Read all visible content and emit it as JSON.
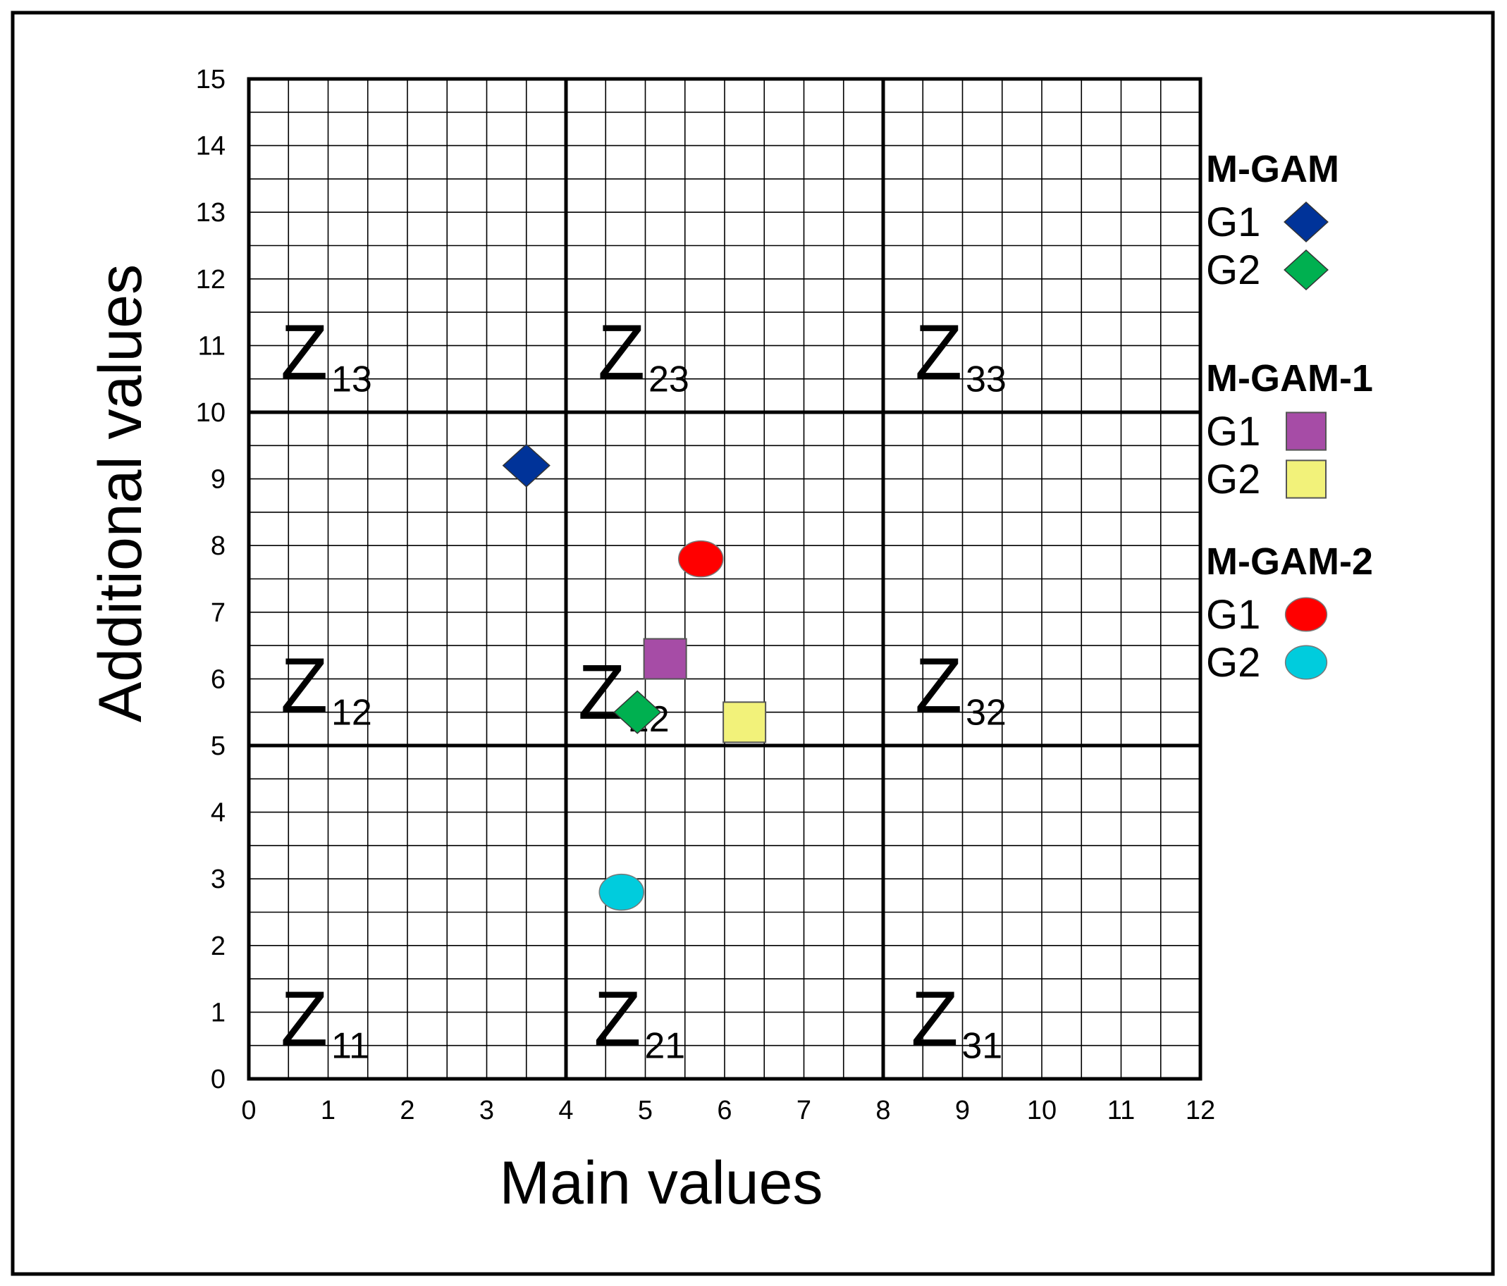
{
  "chart_data": {
    "type": "scatter",
    "title": "",
    "xlabel": "Main values",
    "ylabel": "Additional values",
    "xlim": [
      0,
      12
    ],
    "ylim": [
      0,
      15
    ],
    "x_ticks": [
      0,
      1,
      2,
      3,
      4,
      5,
      6,
      7,
      8,
      9,
      10,
      11,
      12
    ],
    "y_ticks": [
      0,
      1,
      2,
      3,
      4,
      5,
      6,
      7,
      8,
      9,
      10,
      11,
      12,
      13,
      14,
      15
    ],
    "grid": true,
    "minor_grid_step": 0.5,
    "zone_dividers": {
      "x": [
        4,
        8
      ],
      "y": [
        5,
        10
      ]
    },
    "zones": [
      {
        "main": "Z",
        "sub": "13",
        "x": 0.4,
        "y": 10.5
      },
      {
        "main": "Z",
        "sub": "23",
        "x": 4.4,
        "y": 10.5
      },
      {
        "main": "Z",
        "sub": "33",
        "x": 8.4,
        "y": 10.5
      },
      {
        "main": "Z",
        "sub": "12",
        "x": 0.4,
        "y": 5.5
      },
      {
        "main": "Z",
        "sub": "22",
        "x": 4.15,
        "y": 5.4
      },
      {
        "main": "Z",
        "sub": "32",
        "x": 8.4,
        "y": 5.5
      },
      {
        "main": "Z",
        "sub": "11",
        "x": 0.4,
        "y": 0.5
      },
      {
        "main": "Z",
        "sub": "21",
        "x": 4.35,
        "y": 0.5
      },
      {
        "main": "Z",
        "sub": "31",
        "x": 8.35,
        "y": 0.5
      }
    ],
    "legend": {
      "position": "right",
      "groups": [
        {
          "title": "M-GAM",
          "entries": [
            {
              "label": "G1",
              "marker": "diamond",
              "color": "#003399"
            },
            {
              "label": "G2",
              "marker": "diamond",
              "color": "#00b050"
            }
          ]
        },
        {
          "title": "M-GAM-1",
          "entries": [
            {
              "label": "G1",
              "marker": "square",
              "color": "#a64ca6"
            },
            {
              "label": "G2",
              "marker": "square",
              "color": "#f2f27a"
            }
          ]
        },
        {
          "title": "M-GAM-2",
          "entries": [
            {
              "label": "G1",
              "marker": "circle",
              "color": "#ff0000"
            },
            {
              "label": "G2",
              "marker": "circle",
              "color": "#00ccdd"
            }
          ]
        }
      ]
    },
    "points": [
      {
        "group": "M-GAM",
        "label": "G1",
        "marker": "diamond",
        "color": "#003399",
        "x": 3.5,
        "y": 9.2
      },
      {
        "group": "M-GAM",
        "label": "G2",
        "marker": "diamond",
        "color": "#00b050",
        "x": 4.9,
        "y": 5.5
      },
      {
        "group": "M-GAM-1",
        "label": "G1",
        "marker": "square",
        "color": "#a64ca6",
        "x": 5.25,
        "y": 6.3
      },
      {
        "group": "M-GAM-1",
        "label": "G2",
        "marker": "square",
        "color": "#f2f27a",
        "x": 6.25,
        "y": 5.35
      },
      {
        "group": "M-GAM-2",
        "label": "G1",
        "marker": "circle",
        "color": "#ff0000",
        "x": 5.7,
        "y": 7.8
      },
      {
        "group": "M-GAM-2",
        "label": "G2",
        "marker": "circle",
        "color": "#00ccdd",
        "x": 4.7,
        "y": 2.8
      }
    ]
  }
}
